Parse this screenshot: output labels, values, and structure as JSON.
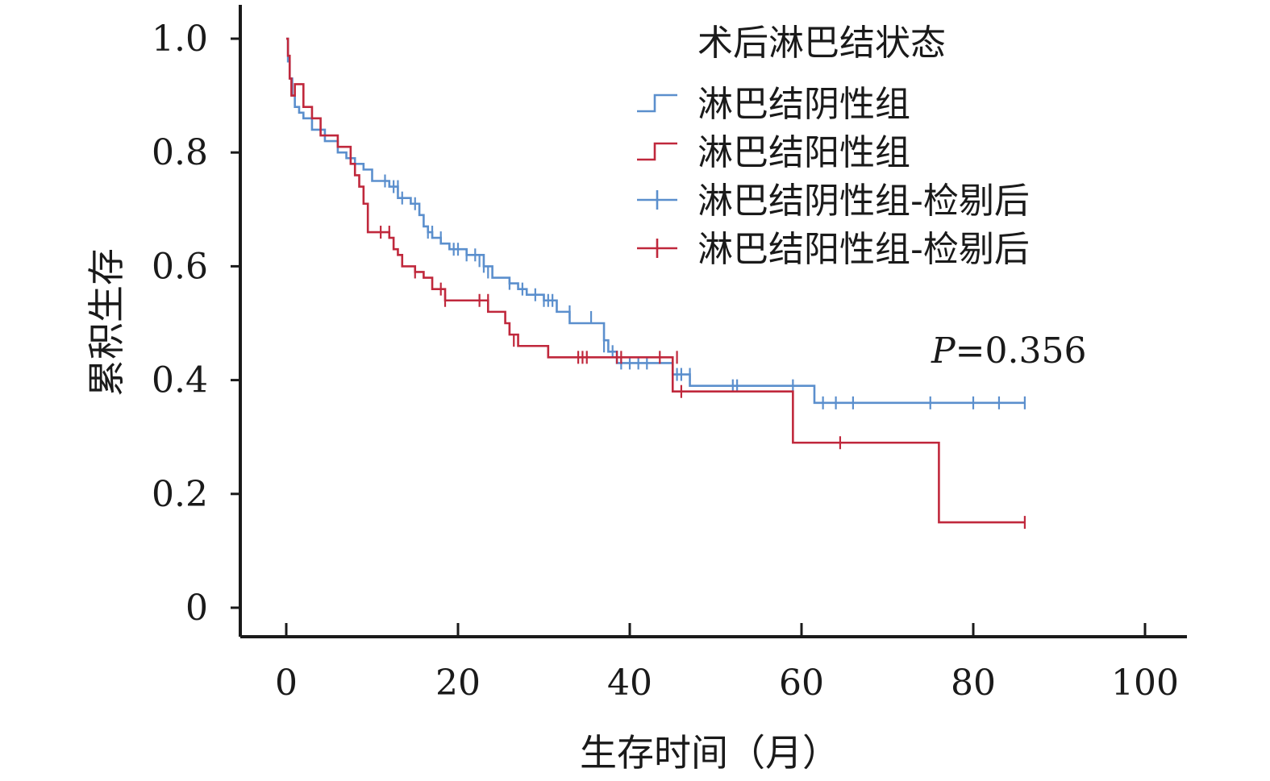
{
  "chart_data": {
    "type": "line",
    "subtype": "kaplan-meier",
    "xlabel": "生存时间（月）",
    "ylabel": "累积生存",
    "xlim": [
      0,
      100
    ],
    "ylim": [
      0,
      1.0
    ],
    "x_ticks": [
      "0",
      "20",
      "40",
      "60",
      "80",
      "100"
    ],
    "y_ticks": [
      "0",
      "0.2",
      "0.4",
      "0.6",
      "0.8",
      "1.0"
    ],
    "legend_title": "术后淋巴结状态",
    "legend_position": "top-right",
    "annotation_p_label": "P",
    "annotation_p_value": "=0.356",
    "colors": {
      "negative": "#5b8fcd",
      "positive": "#c0283c",
      "axis": "#1a1a1a"
    },
    "series": [
      {
        "name": "淋巴结阴性组",
        "censor_name": "淋巴结阴性组-检剔后",
        "color": "#5b8fcd",
        "steps": [
          [
            0,
            1.0
          ],
          [
            0.2,
            0.96
          ],
          [
            0.4,
            0.93
          ],
          [
            0.7,
            0.9
          ],
          [
            1.0,
            0.88
          ],
          [
            1.5,
            0.87
          ],
          [
            2.0,
            0.86
          ],
          [
            3.0,
            0.84
          ],
          [
            4.5,
            0.82
          ],
          [
            6.0,
            0.8
          ],
          [
            7.0,
            0.79
          ],
          [
            8.0,
            0.78
          ],
          [
            9.0,
            0.77
          ],
          [
            10.0,
            0.75
          ],
          [
            12.0,
            0.74
          ],
          [
            13.0,
            0.72
          ],
          [
            14.5,
            0.71
          ],
          [
            15.5,
            0.69
          ],
          [
            16.0,
            0.67
          ],
          [
            16.5,
            0.66
          ],
          [
            17.0,
            0.65
          ],
          [
            18.0,
            0.64
          ],
          [
            19.0,
            0.63
          ],
          [
            21.0,
            0.62
          ],
          [
            23.0,
            0.6
          ],
          [
            24.0,
            0.58
          ],
          [
            26.0,
            0.57
          ],
          [
            27.0,
            0.56
          ],
          [
            28.0,
            0.55
          ],
          [
            30.0,
            0.54
          ],
          [
            31.5,
            0.52
          ],
          [
            33.0,
            0.5
          ],
          [
            37.0,
            0.47
          ],
          [
            37.5,
            0.45
          ],
          [
            38.5,
            0.43
          ],
          [
            45.0,
            0.41
          ],
          [
            47.0,
            0.39
          ],
          [
            61.5,
            0.36
          ],
          [
            86.0,
            0.36
          ]
        ],
        "censored": [
          [
            11.5,
            0.75
          ],
          [
            12.5,
            0.74
          ],
          [
            13.0,
            0.74
          ],
          [
            13.5,
            0.72
          ],
          [
            15.0,
            0.71
          ],
          [
            16.5,
            0.66
          ],
          [
            17.0,
            0.66
          ],
          [
            18.0,
            0.65
          ],
          [
            19.5,
            0.63
          ],
          [
            20.0,
            0.63
          ],
          [
            21.0,
            0.62
          ],
          [
            22.0,
            0.62
          ],
          [
            22.5,
            0.61
          ],
          [
            23.0,
            0.6
          ],
          [
            23.5,
            0.59
          ],
          [
            26.0,
            0.57
          ],
          [
            27.5,
            0.56
          ],
          [
            29.0,
            0.55
          ],
          [
            30.0,
            0.54
          ],
          [
            30.5,
            0.54
          ],
          [
            31.0,
            0.54
          ],
          [
            31.5,
            0.53
          ],
          [
            33.0,
            0.52
          ],
          [
            35.5,
            0.51
          ],
          [
            37.0,
            0.46
          ],
          [
            38.0,
            0.45
          ],
          [
            39.0,
            0.43
          ],
          [
            40.0,
            0.43
          ],
          [
            41.0,
            0.43
          ],
          [
            42.0,
            0.43
          ],
          [
            45.5,
            0.41
          ],
          [
            46.0,
            0.41
          ],
          [
            47.0,
            0.41
          ],
          [
            52.0,
            0.39
          ],
          [
            52.5,
            0.39
          ],
          [
            59.0,
            0.39
          ],
          [
            62.5,
            0.36
          ],
          [
            64.0,
            0.36
          ],
          [
            66.0,
            0.36
          ],
          [
            75.0,
            0.36
          ],
          [
            80.0,
            0.36
          ],
          [
            83.0,
            0.36
          ],
          [
            86.0,
            0.36
          ]
        ]
      },
      {
        "name": "淋巴结阳性组",
        "censor_name": "淋巴结阳性组-检剔后",
        "color": "#c0283c",
        "steps": [
          [
            0,
            1.0
          ],
          [
            0.2,
            0.97
          ],
          [
            0.4,
            0.93
          ],
          [
            0.6,
            0.9
          ],
          [
            1.0,
            0.92
          ],
          [
            2.0,
            0.88
          ],
          [
            3.0,
            0.86
          ],
          [
            4.0,
            0.83
          ],
          [
            6.0,
            0.81
          ],
          [
            7.5,
            0.78
          ],
          [
            8.0,
            0.76
          ],
          [
            8.5,
            0.74
          ],
          [
            9.0,
            0.71
          ],
          [
            9.5,
            0.66
          ],
          [
            12.0,
            0.65
          ],
          [
            12.5,
            0.63
          ],
          [
            13.0,
            0.62
          ],
          [
            13.5,
            0.6
          ],
          [
            15.0,
            0.59
          ],
          [
            16.0,
            0.58
          ],
          [
            17.0,
            0.56
          ],
          [
            18.5,
            0.54
          ],
          [
            23.5,
            0.52
          ],
          [
            25.5,
            0.5
          ],
          [
            26.0,
            0.48
          ],
          [
            27.0,
            0.46
          ],
          [
            30.5,
            0.44
          ],
          [
            45.0,
            0.38
          ],
          [
            59.0,
            0.29
          ],
          [
            76.0,
            0.15
          ],
          [
            86.0,
            0.15
          ]
        ],
        "censored": [
          [
            11.0,
            0.66
          ],
          [
            12.0,
            0.66
          ],
          [
            15.0,
            0.59
          ],
          [
            18.0,
            0.56
          ],
          [
            18.5,
            0.54
          ],
          [
            22.5,
            0.54
          ],
          [
            23.5,
            0.54
          ],
          [
            26.0,
            0.49
          ],
          [
            26.5,
            0.47
          ],
          [
            34.0,
            0.44
          ],
          [
            34.5,
            0.44
          ],
          [
            35.0,
            0.44
          ],
          [
            38.5,
            0.44
          ],
          [
            39.0,
            0.44
          ],
          [
            43.5,
            0.44
          ],
          [
            45.5,
            0.44
          ],
          [
            46.0,
            0.38
          ],
          [
            64.5,
            0.29
          ],
          [
            86.0,
            0.15
          ]
        ]
      }
    ]
  }
}
